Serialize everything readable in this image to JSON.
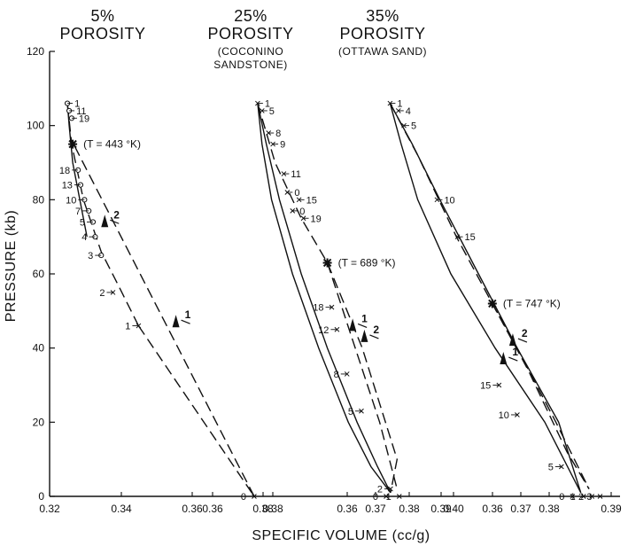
{
  "chart_data": {
    "type": "line",
    "xlabel": "SPECIFIC VOLUME (cc/g)",
    "ylabel": "PRESSURE (kb)",
    "ylim": [
      0,
      120
    ],
    "yticks": [
      "0",
      "20",
      "40",
      "60",
      "80",
      "100",
      "120"
    ],
    "panels": [
      {
        "title": "5%",
        "title2": "POROSITY",
        "subtitle": [],
        "xlim": [
          0.32,
          0.38
        ],
        "xticks": [
          "0.32",
          "0.34",
          "0.36",
          "0.38"
        ],
        "temperature_label": "(T = 443 °K)",
        "temperature_point": {
          "x": 0.3265,
          "y": 95
        },
        "series": [
          {
            "style": "solid",
            "x": [
              0.3305,
              0.3285,
              0.3265,
              0.3255,
              0.325
            ],
            "y": [
              70,
              80,
              90,
              100,
              106
            ]
          },
          {
            "style": "dashed",
            "x": [
              0.345,
              0.3398,
              0.3345,
              0.3295,
              0.3262,
              0.325
            ],
            "y": [
              46,
              56,
              66,
              80,
              95,
              106
            ]
          },
          {
            "style": "dashed",
            "x": [
              0.3775,
              0.3262
            ],
            "y": [
              0,
              96
            ]
          },
          {
            "style": "dashed",
            "x": [
              0.345,
              0.3775
            ],
            "y": [
              46,
              0
            ]
          }
        ],
        "arrows": [
          {
            "label": "1",
            "x": 0.3555,
            "y": 48
          },
          {
            "label": "2",
            "x": 0.3355,
            "y": 75
          }
        ],
        "points": [
          {
            "label": "1",
            "x": 0.325,
            "y": 106
          },
          {
            "label": "11",
            "x": 0.3255,
            "y": 104
          },
          {
            "label": "19",
            "x": 0.3262,
            "y": 102
          },
          {
            "label": "18",
            "x": 0.328,
            "y": 88
          },
          {
            "label": "13",
            "x": 0.3287,
            "y": 84
          },
          {
            "label": "10",
            "x": 0.3298,
            "y": 80
          },
          {
            "label": "7",
            "x": 0.331,
            "y": 77
          },
          {
            "label": "5",
            "x": 0.3322,
            "y": 74
          },
          {
            "label": "4",
            "x": 0.3328,
            "y": 70
          },
          {
            "label": "3",
            "x": 0.3345,
            "y": 65
          },
          {
            "label": "2",
            "x": 0.3378,
            "y": 55
          },
          {
            "label": "1",
            "x": 0.345,
            "y": 46
          },
          {
            "label": "0",
            "x": 0.3775,
            "y": 0
          }
        ]
      },
      {
        "title": "25%",
        "title2": "POROSITY",
        "subtitle": [
          "(COCONINO",
          "SANDSTONE)"
        ],
        "xlim": [
          0.35,
          0.4
        ],
        "xticks": [
          "0.36",
          "0.38",
          "0.36",
          "0.37",
          "0.38",
          "0.39",
          "0.40"
        ],
        "temperature_label": "(T = 689 °K)",
        "temperature_point": {
          "x": 0.38,
          "y": 63
        },
        "series": [
          {
            "style": "solid",
            "x": [
              0.364,
              0.365,
              0.3672,
              0.372,
              0.378,
              0.3848,
              0.39,
              0.3945
            ],
            "y": [
              106,
              95,
              80,
              60,
              40,
              20,
              8,
              1
            ]
          },
          {
            "style": "solid",
            "x": [
              0.364,
              0.366,
              0.369,
              0.374,
              0.38,
              0.3868,
              0.3915,
              0.3945
            ],
            "y": [
              106,
              95,
              80,
              60,
              40,
              20,
              8,
              1
            ]
          },
          {
            "style": "dashed",
            "x": [
              0.364,
              0.368,
              0.374,
              0.38,
              0.388,
              0.396,
              0.3945
            ],
            "y": [
              106,
              90,
              75,
              63,
              40,
              10,
              1
            ]
          },
          {
            "style": "dashed",
            "x": [
              0.38,
              0.385,
              0.392,
              0.396
            ],
            "y": [
              63,
              45,
              20,
              2
            ]
          }
        ],
        "arrows": [
          {
            "label": "1",
            "x": 0.3858,
            "y": 47
          },
          {
            "label": "2",
            "x": 0.3885,
            "y": 44
          }
        ],
        "points": [
          {
            "label": "1",
            "x": 0.364,
            "y": 106
          },
          {
            "label": "5",
            "x": 0.365,
            "y": 104
          },
          {
            "label": "8",
            "x": 0.3665,
            "y": 98
          },
          {
            "label": "9",
            "x": 0.3675,
            "y": 95
          },
          {
            "label": "11",
            "x": 0.37,
            "y": 87
          },
          {
            "label": "0",
            "x": 0.3708,
            "y": 82
          },
          {
            "label": "15",
            "x": 0.3735,
            "y": 80
          },
          {
            "label": "0",
            "x": 0.372,
            "y": 77
          },
          {
            "label": "19",
            "x": 0.3745,
            "y": 75
          },
          {
            "label": "18",
            "x": 0.381,
            "y": 51
          },
          {
            "label": "12",
            "x": 0.3822,
            "y": 45
          },
          {
            "label": "8",
            "x": 0.3845,
            "y": 33
          },
          {
            "label": "5",
            "x": 0.3878,
            "y": 23
          },
          {
            "label": "2",
            "x": 0.3945,
            "y": 2
          },
          {
            "label": "0",
            "x": 0.3935,
            "y": 0
          },
          {
            "label": "1",
            "x": 0.3965,
            "y": 0
          }
        ]
      },
      {
        "title": "35%",
        "title2": "POROSITY",
        "subtitle": [
          "(OTTAWA SAND)"
        ],
        "xlim": [
          0.35,
          0.4
        ],
        "xticks": [
          "0.36",
          "0.37",
          "0.38",
          "0.39"
        ],
        "temperature_label": "(T = 747 °K)",
        "temperature_point": {
          "x": 0.3785,
          "y": 52
        },
        "series": [
          {
            "style": "solid",
            "x": [
              0.36,
              0.362,
              0.365,
              0.371,
              0.379,
              0.388,
              0.3945
            ],
            "y": [
              106,
              95,
              80,
              60,
              40,
              20,
              1
            ]
          },
          {
            "style": "solid",
            "x": [
              0.36,
              0.364,
              0.369,
              0.376,
              0.383,
              0.3905,
              0.3945
            ],
            "y": [
              106,
              95,
              80,
              60,
              40,
              20,
              1
            ]
          },
          {
            "style": "dashed",
            "x": [
              0.36,
              0.365,
              0.372,
              0.3785,
              0.385,
              0.392,
              0.396
            ],
            "y": [
              106,
              92,
              70,
              52,
              34,
              12,
              2
            ]
          },
          {
            "style": "dashed",
            "x": [
              0.3785,
              0.383,
              0.39,
              0.396
            ],
            "y": [
              52,
              40,
              20,
              2
            ]
          }
        ],
        "arrows": [
          {
            "label": "1",
            "x": 0.3805,
            "y": 38
          },
          {
            "label": "2",
            "x": 0.3822,
            "y": 43
          }
        ],
        "points": [
          {
            "label": "1",
            "x": 0.36,
            "y": 106
          },
          {
            "label": "4",
            "x": 0.3615,
            "y": 104
          },
          {
            "label": "5",
            "x": 0.3625,
            "y": 100
          },
          {
            "label": "10",
            "x": 0.3685,
            "y": 80
          },
          {
            "label": "15",
            "x": 0.3722,
            "y": 70
          },
          {
            "label": "15",
            "x": 0.3797,
            "y": 30
          },
          {
            "label": "10",
            "x": 0.383,
            "y": 22
          },
          {
            "label": "5",
            "x": 0.391,
            "y": 8
          },
          {
            "label": "0",
            "x": 0.393,
            "y": 0
          },
          {
            "label": "1",
            "x": 0.395,
            "y": 0
          },
          {
            "label": "2",
            "x": 0.3965,
            "y": 0
          },
          {
            "label": "3",
            "x": 0.398,
            "y": 0
          }
        ]
      }
    ]
  }
}
